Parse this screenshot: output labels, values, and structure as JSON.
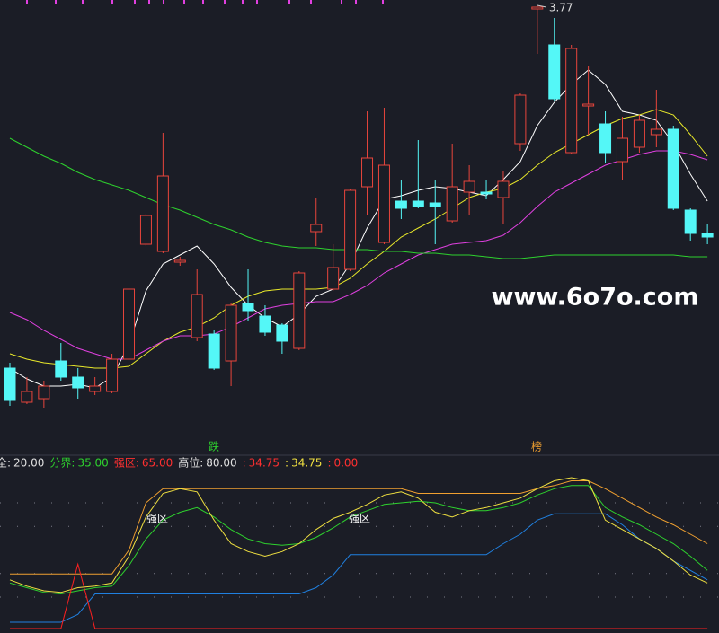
{
  "chart_data": [
    {
      "type": "candlestick",
      "ylim": [
        1.35,
        3.8
      ],
      "up_color": "#e8453c",
      "down_color": "#54f7f7",
      "open": [
        1.75,
        1.56,
        1.58,
        1.79,
        1.7,
        1.62,
        1.62,
        1.8,
        2.44,
        2.4,
        2.34,
        1.92,
        1.94,
        1.79,
        2.11,
        2.04,
        1.99,
        1.86,
        2.51,
        2.19,
        2.3,
        2.76,
        2.45,
        2.68,
        2.68,
        2.67,
        2.57,
        2.73,
        2.73,
        2.7,
        3.0,
        3.75,
        3.55,
        2.95,
        3.21,
        3.11,
        2.9,
        2.98,
        3.05,
        3.08,
        2.63,
        2.5
      ],
      "close": [
        1.57,
        1.62,
        1.65,
        1.7,
        1.64,
        1.65,
        1.8,
        2.19,
        2.6,
        2.82,
        2.35,
        2.16,
        1.75,
        2.1,
        2.07,
        1.95,
        1.9,
        2.28,
        2.55,
        2.31,
        2.74,
        2.92,
        2.88,
        2.64,
        2.65,
        2.65,
        2.76,
        2.79,
        2.72,
        2.79,
        3.27,
        3.76,
        3.25,
        3.53,
        3.22,
        2.95,
        3.03,
        3.13,
        3.08,
        2.64,
        2.5,
        2.48
      ],
      "high": [
        1.78,
        1.7,
        1.68,
        1.89,
        1.75,
        1.7,
        1.83,
        2.2,
        2.61,
        3.06,
        2.37,
        2.3,
        1.96,
        2.11,
        2.3,
        2.1,
        2.0,
        2.29,
        2.7,
        2.44,
        2.75,
        3.18,
        3.2,
        2.8,
        3.02,
        2.8,
        3.0,
        2.88,
        2.8,
        2.85,
        3.28,
        3.77,
        3.7,
        3.55,
        3.43,
        3.18,
        3.15,
        3.16,
        3.3,
        3.1,
        2.64,
        2.55
      ],
      "low": [
        1.54,
        1.55,
        1.53,
        1.68,
        1.58,
        1.6,
        1.61,
        1.79,
        2.43,
        2.39,
        2.32,
        1.9,
        1.74,
        1.65,
        2.01,
        1.93,
        1.83,
        1.85,
        2.43,
        2.18,
        2.29,
        2.6,
        2.44,
        2.58,
        2.64,
        2.44,
        2.56,
        2.6,
        2.69,
        2.55,
        2.96,
        3.5,
        3.24,
        2.94,
        3.05,
        2.89,
        2.8,
        2.95,
        2.98,
        2.63,
        2.46,
        2.44
      ],
      "series": [
        {
          "color": "#ffffff",
          "values": [
            1.75,
            1.69,
            1.65,
            1.65,
            1.66,
            1.64,
            1.7,
            1.88,
            2.18,
            2.33,
            2.38,
            2.43,
            2.33,
            2.2,
            2.1,
            2.03,
            1.98,
            2.05,
            2.15,
            2.19,
            2.33,
            2.53,
            2.69,
            2.71,
            2.74,
            2.76,
            2.75,
            2.73,
            2.71,
            2.8,
            2.9,
            3.1,
            3.23,
            3.33,
            3.41,
            3.33,
            3.18,
            3.16,
            3.13,
            3.0,
            2.83,
            2.68
          ]
        },
        {
          "color": "#e8e82a",
          "values": [
            1.83,
            1.8,
            1.78,
            1.77,
            1.76,
            1.75,
            1.75,
            1.76,
            1.83,
            1.9,
            1.95,
            1.98,
            2.03,
            2.1,
            2.15,
            2.18,
            2.19,
            2.19,
            2.19,
            2.2,
            2.25,
            2.33,
            2.4,
            2.48,
            2.53,
            2.58,
            2.64,
            2.7,
            2.73,
            2.75,
            2.8,
            2.88,
            2.95,
            3.0,
            3.05,
            3.1,
            3.14,
            3.16,
            3.19,
            3.16,
            3.05,
            2.93
          ]
        },
        {
          "color": "#e040e0",
          "values": [
            2.06,
            2.02,
            1.96,
            1.91,
            1.86,
            1.83,
            1.8,
            1.8,
            1.85,
            1.9,
            1.93,
            1.93,
            1.94,
            1.98,
            2.03,
            2.08,
            2.1,
            2.11,
            2.12,
            2.12,
            2.16,
            2.21,
            2.28,
            2.33,
            2.38,
            2.41,
            2.44,
            2.45,
            2.46,
            2.49,
            2.56,
            2.65,
            2.73,
            2.78,
            2.83,
            2.88,
            2.91,
            2.94,
            2.96,
            2.96,
            2.94,
            2.91
          ]
        },
        {
          "color": "#2ed12e",
          "values": [
            3.03,
            2.98,
            2.93,
            2.89,
            2.84,
            2.8,
            2.77,
            2.74,
            2.7,
            2.66,
            2.63,
            2.59,
            2.55,
            2.52,
            2.48,
            2.45,
            2.43,
            2.42,
            2.42,
            2.41,
            2.41,
            2.41,
            2.4,
            2.4,
            2.39,
            2.39,
            2.38,
            2.38,
            2.37,
            2.36,
            2.36,
            2.37,
            2.38,
            2.38,
            2.38,
            2.38,
            2.38,
            2.38,
            2.38,
            2.38,
            2.37,
            2.37
          ]
        }
      ],
      "high_label": "3.77",
      "annotations": [
        {
          "text": "跌",
          "color": "#2ed12e"
        },
        {
          "text": "榜",
          "color": "#f0a030"
        }
      ],
      "watermark": "www.6o7o.com"
    },
    {
      "type": "line",
      "ylim": [
        0,
        100
      ],
      "header": [
        {
          "label": "全:",
          "value": "20.00",
          "color": "#e0e0e0"
        },
        {
          "label": "分界:",
          "value": "35.00",
          "color": "#2ed12e"
        },
        {
          "label": "强区:",
          "value": "65.00",
          "color": "#ff3030"
        },
        {
          "label": "高位:",
          "value": "80.00",
          "color": "#e0e0e0"
        },
        {
          "label": ":",
          "value": "34.75",
          "color": "#ff3030"
        },
        {
          "label": ":",
          "value": "34.75",
          "color": "#f0e040"
        },
        {
          "label": ":",
          "value": "0.00",
          "color": "#ff3030"
        }
      ],
      "series": [
        {
          "color": "#f0a030",
          "values": [
            34.75,
            34.75,
            34.75,
            34.75,
            34.75,
            34.75,
            34.75,
            50,
            80,
            89,
            89,
            89,
            89,
            89,
            89,
            89,
            89,
            89,
            89,
            89,
            89,
            89,
            89,
            89,
            86,
            86,
            86,
            86,
            86,
            86,
            86,
            89,
            91,
            94,
            94,
            89,
            83,
            77,
            71,
            66,
            60,
            54
          ]
        },
        {
          "color": "#2080e0",
          "values": [
            4,
            4,
            4,
            4,
            9,
            22,
            22,
            22,
            22,
            22,
            22,
            22,
            22,
            22,
            22,
            22,
            22,
            22,
            26,
            34,
            47,
            47,
            47,
            47,
            47,
            47,
            47,
            47,
            47,
            54,
            60,
            69,
            73,
            73,
            73,
            73,
            66,
            57,
            51,
            43,
            37,
            31
          ]
        },
        {
          "color": "#2ed12e",
          "values": [
            29,
            26,
            23,
            22,
            24,
            26,
            27,
            40,
            57,
            69,
            74,
            77,
            71,
            63,
            57,
            54,
            53,
            54,
            58,
            64,
            71,
            75,
            79,
            80,
            81,
            80,
            77,
            75,
            75,
            77,
            80,
            85,
            89,
            91,
            91,
            77,
            71,
            66,
            60,
            54,
            46,
            37
          ]
        },
        {
          "color": "#f0e040",
          "values": [
            31,
            27,
            24,
            23,
            26,
            27,
            29,
            46,
            71,
            86,
            89,
            87,
            69,
            54,
            49,
            46,
            49,
            54,
            63,
            70,
            74,
            79,
            85,
            87,
            83,
            74,
            71,
            75,
            77,
            80,
            83,
            89,
            94,
            96,
            94,
            69,
            63,
            57,
            51,
            43,
            34,
            29
          ]
        },
        {
          "color": "#ff2020",
          "values": [
            0,
            0,
            0,
            0,
            41,
            0,
            0,
            0,
            0,
            0,
            0,
            0,
            0,
            0,
            0,
            0,
            0,
            0,
            0,
            0,
            0,
            0,
            0,
            0,
            0,
            0,
            0,
            0,
            0,
            0,
            0,
            0,
            0,
            0,
            0,
            0,
            0,
            0,
            0,
            0,
            0,
            0
          ]
        }
      ],
      "annotations": [
        {
          "text": "强区"
        },
        {
          "text": "强区"
        }
      ]
    }
  ]
}
